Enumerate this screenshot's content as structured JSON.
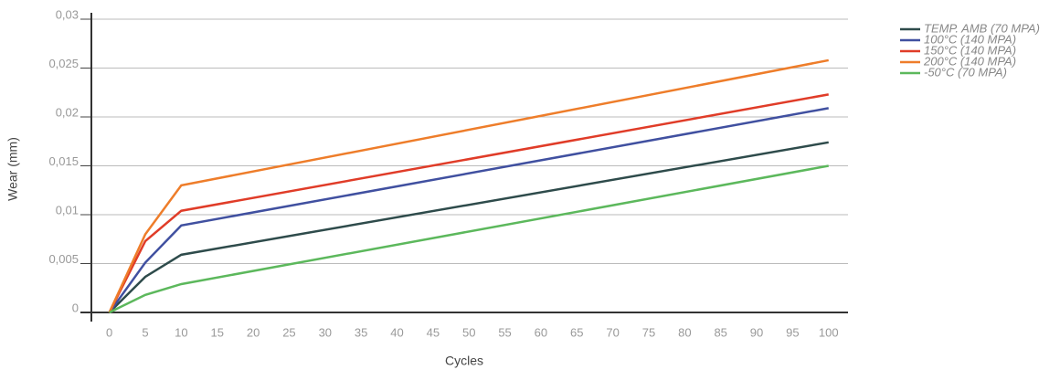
{
  "chart_data": {
    "type": "line",
    "xlabel": "Cycles",
    "ylabel": "Wear (mm)",
    "x": [
      0,
      5,
      10,
      100
    ],
    "series": [
      {
        "name": "TEMP. AMB (70 MPA)",
        "color": "#2e4b4b",
        "values": [
          0,
          0.00365,
          0.0059,
          0.0174
        ]
      },
      {
        "name": "100°C (140 MPA)",
        "color": "#4050a0",
        "values": [
          0,
          0.0051,
          0.0089,
          0.0209
        ]
      },
      {
        "name": "150°C (140 MPA)",
        "color": "#e03c28",
        "values": [
          0,
          0.0073,
          0.0104,
          0.0223
        ]
      },
      {
        "name": "200°C (140 MPA)",
        "color": "#ee7d2a",
        "values": [
          0,
          0.008,
          0.013,
          0.0258
        ]
      },
      {
        "name": "-50°C (70 MPA)",
        "color": "#5cb85c",
        "values": [
          0,
          0.0018,
          0.0029,
          0.015
        ]
      }
    ],
    "xlim": [
      -2.5,
      102.7
    ],
    "xticks": [
      0,
      5,
      10,
      15,
      20,
      25,
      30,
      35,
      40,
      45,
      50,
      55,
      60,
      65,
      70,
      75,
      80,
      85,
      90,
      95,
      100
    ],
    "ylim": [
      0,
      0.03
    ],
    "yticks": [
      0,
      {
        "value": 0.005,
        "label": "0,005"
      },
      {
        "value": 0.01,
        "label": "0,01"
      },
      {
        "value": 0.015,
        "label": "0,015"
      },
      {
        "value": 0.02,
        "label": "0,02"
      },
      {
        "value": 0.025,
        "label": "0,025"
      },
      {
        "value": 0.03,
        "label": "0,03"
      }
    ],
    "grid": true,
    "legend": "top-right"
  }
}
